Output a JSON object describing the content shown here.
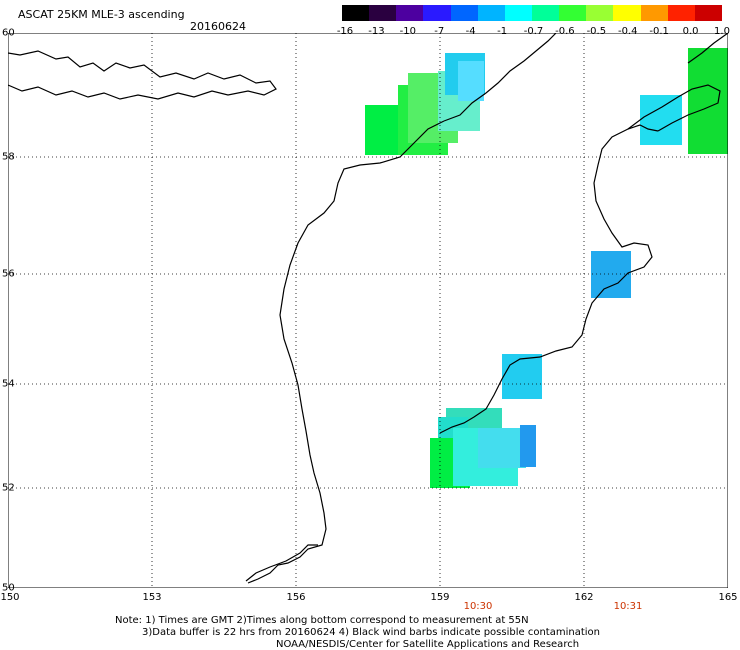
{
  "title": "ASCAT 25KM MLE-3 ascending",
  "date": "20160624",
  "colorbar": {
    "labels": [
      "-16",
      "-13",
      "-10",
      "-7",
      "-4",
      "-1",
      "-0.7",
      "-0.6",
      "-0.5",
      "-0.4",
      "-0.1",
      "0.0",
      "1.0"
    ],
    "colors": [
      "#000000",
      "#2a0040",
      "#4d00a0",
      "#2a1aff",
      "#0066ff",
      "#00b4ff",
      "#00ffff",
      "#00ff99",
      "#33ff33",
      "#99ff33",
      "#ffff00",
      "#ff9900",
      "#ff2200",
      "#cc0000"
    ]
  },
  "map": {
    "lon_range": [
      150,
      165
    ],
    "lat_range": [
      50,
      60
    ],
    "lat_labels": [
      "60",
      "58",
      "56",
      "54",
      "52",
      "50"
    ],
    "lon_labels": [
      "150",
      "153",
      "156",
      "159",
      "162",
      "165"
    ]
  },
  "times": [
    "10:30",
    "10:31"
  ],
  "notes": [
    "Note: 1) Times are GMT 2)Times along bottom correspond to measurement at 55N",
    "3)Data buffer is 22 hrs from 20160624 4) Black wind barbs indicate possible contamination",
    "NOAA/NESDIS/Center for Satellite Applications and Research"
  ]
}
